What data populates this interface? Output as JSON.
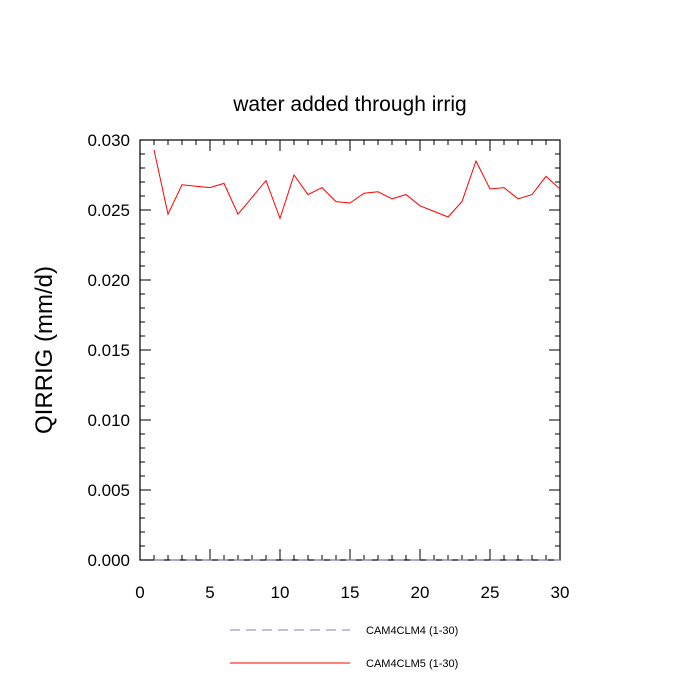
{
  "chart_data": {
    "type": "line",
    "title": "water added through irrig",
    "xlabel": "",
    "ylabel": "QIRRIG  (mm/d)",
    "xlim": [
      0,
      30
    ],
    "ylim": [
      0.0,
      0.03
    ],
    "x_ticks": [
      0,
      5,
      10,
      15,
      20,
      25,
      30
    ],
    "x_tick_labels": [
      "0",
      "5",
      "10",
      "15",
      "20",
      "25",
      "30"
    ],
    "y_ticks": [
      0.0,
      0.005,
      0.01,
      0.015,
      0.02,
      0.025,
      0.03
    ],
    "y_tick_labels": [
      "0.000",
      "0.005",
      "0.010",
      "0.015",
      "0.020",
      "0.025",
      "0.030"
    ],
    "grid": false,
    "legend_position": "bottom",
    "x": [
      1,
      2,
      3,
      4,
      5,
      6,
      7,
      8,
      9,
      10,
      11,
      12,
      13,
      14,
      15,
      16,
      17,
      18,
      19,
      20,
      21,
      22,
      23,
      24,
      25,
      26,
      27,
      28,
      29,
      30
    ],
    "series": [
      {
        "name": "CAM4CLM4 (1-30)",
        "color": "#7f7fcf",
        "style": "dashed",
        "values": [
          0,
          0,
          0,
          0,
          0,
          0,
          0,
          0,
          0,
          0,
          0,
          0,
          0,
          0,
          0,
          0,
          0,
          0,
          0,
          0,
          0,
          0,
          0,
          0,
          0,
          0,
          0,
          0,
          0,
          0
        ]
      },
      {
        "name": "CAM4CLM5 (1-30)",
        "color": "#ff0000",
        "style": "solid",
        "values": [
          0.0293,
          0.0247,
          0.0268,
          0.0267,
          0.0266,
          0.0269,
          0.0247,
          0.0259,
          0.0271,
          0.0244,
          0.0275,
          0.0261,
          0.0266,
          0.0256,
          0.0255,
          0.0262,
          0.0263,
          0.0258,
          0.0261,
          0.0253,
          0.0249,
          0.0245,
          0.0256,
          0.0285,
          0.0265,
          0.0266,
          0.0258,
          0.0261,
          0.0274,
          0.0265
        ]
      }
    ]
  }
}
